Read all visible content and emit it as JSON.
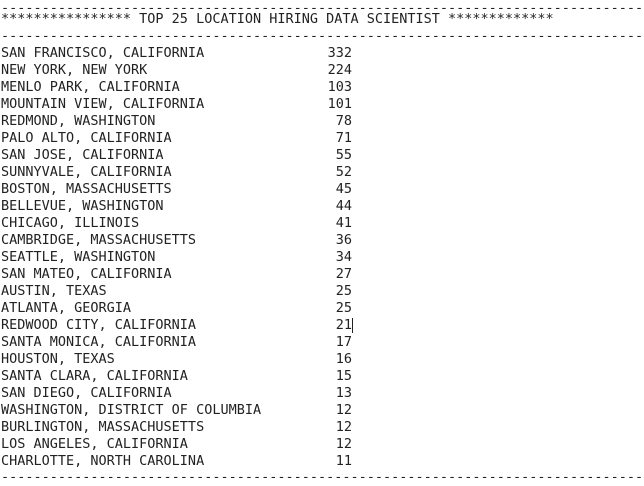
{
  "output": {
    "top_separator": "----------------------------------------------------------------------------------",
    "title_line": "**************** TOP 25 LOCATION HIRING DATA SCIENTIST *************",
    "mid_separator": "----------------------------------------------------------------------------------",
    "bottom_separator": "----------------------------------------------------------------------------------",
    "rows": [
      {
        "location": "SAN FRANCISCO, CALIFORNIA",
        "count": "332"
      },
      {
        "location": "NEW YORK, NEW YORK",
        "count": "224"
      },
      {
        "location": "MENLO PARK, CALIFORNIA",
        "count": "103"
      },
      {
        "location": "MOUNTAIN VIEW, CALIFORNIA",
        "count": "101"
      },
      {
        "location": "REDMOND, WASHINGTON",
        "count": "78"
      },
      {
        "location": "PALO ALTO, CALIFORNIA",
        "count": "71"
      },
      {
        "location": "SAN JOSE, CALIFORNIA",
        "count": "55"
      },
      {
        "location": "SUNNYVALE, CALIFORNIA",
        "count": "52"
      },
      {
        "location": "BOSTON, MASSACHUSETTS",
        "count": "45"
      },
      {
        "location": "BELLEVUE, WASHINGTON",
        "count": "44"
      },
      {
        "location": "CHICAGO, ILLINOIS",
        "count": "41"
      },
      {
        "location": "CAMBRIDGE, MASSACHUSETTS",
        "count": "36"
      },
      {
        "location": "SEATTLE, WASHINGTON",
        "count": "34"
      },
      {
        "location": "SAN MATEO, CALIFORNIA",
        "count": "27"
      },
      {
        "location": "AUSTIN, TEXAS",
        "count": "25"
      },
      {
        "location": "ATLANTA, GEORGIA",
        "count": "25"
      },
      {
        "location": "REDWOOD CITY, CALIFORNIA",
        "count": "21"
      },
      {
        "location": "SANTA MONICA, CALIFORNIA",
        "count": "17"
      },
      {
        "location": "HOUSTON, TEXAS",
        "count": "16"
      },
      {
        "location": "SANTA CLARA, CALIFORNIA",
        "count": "15"
      },
      {
        "location": "SAN DIEGO, CALIFORNIA",
        "count": "13"
      },
      {
        "location": "WASHINGTON, DISTRICT OF COLUMBIA",
        "count": "12"
      },
      {
        "location": "BURLINGTON, MASSACHUSETTS",
        "count": "12"
      },
      {
        "location": "LOS ANGELES, CALIFORNIA",
        "count": "12"
      },
      {
        "location": "CHARLOTTE, NORTH CAROLINA",
        "count": "11"
      }
    ]
  }
}
